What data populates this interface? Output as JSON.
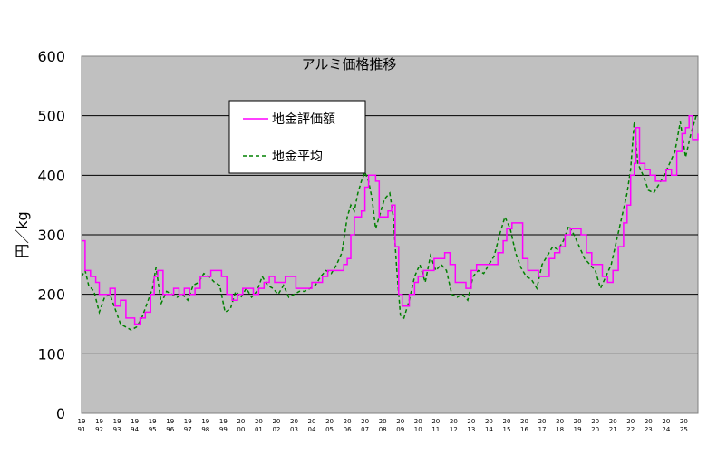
{
  "chart_data": {
    "type": "line",
    "title": "アルミ価格推移",
    "xlabel": "",
    "ylabel": "円／kg",
    "ylim": [
      0,
      600
    ],
    "yticks": [
      0,
      100,
      200,
      300,
      400,
      500,
      600
    ],
    "xlim": [
      1991,
      2025.8
    ],
    "grid": "horizontal",
    "legend_position": "top-center",
    "background": "#c0c0c0",
    "x_ticks": [
      {
        "top": "19",
        "bottom": "91"
      },
      {
        "top": "19",
        "bottom": "92"
      },
      {
        "top": "19",
        "bottom": "93"
      },
      {
        "top": "19",
        "bottom": "94"
      },
      {
        "top": "19",
        "bottom": "95"
      },
      {
        "top": "19",
        "bottom": "96"
      },
      {
        "top": "19",
        "bottom": "97"
      },
      {
        "top": "19",
        "bottom": "98"
      },
      {
        "top": "19",
        "bottom": "99"
      },
      {
        "top": "20",
        "bottom": "00"
      },
      {
        "top": "20",
        "bottom": "01"
      },
      {
        "top": "20",
        "bottom": "02"
      },
      {
        "top": "20",
        "bottom": "03"
      },
      {
        "top": "20",
        "bottom": "04"
      },
      {
        "top": "20",
        "bottom": "05"
      },
      {
        "top": "20",
        "bottom": "06"
      },
      {
        "top": "20",
        "bottom": "07"
      },
      {
        "top": "20",
        "bottom": "08"
      },
      {
        "top": "20",
        "bottom": "09"
      },
      {
        "top": "20",
        "bottom": "10"
      },
      {
        "top": "20",
        "bottom": "11"
      },
      {
        "top": "20",
        "bottom": "12"
      },
      {
        "top": "20",
        "bottom": "13"
      },
      {
        "top": "20",
        "bottom": "14"
      },
      {
        "top": "20",
        "bottom": "15"
      },
      {
        "top": "20",
        "bottom": "16"
      },
      {
        "top": "20",
        "bottom": "17"
      },
      {
        "top": "20",
        "bottom": "18"
      },
      {
        "top": "20",
        "bottom": "19"
      },
      {
        "top": "20",
        "bottom": "20"
      },
      {
        "top": "20",
        "bottom": "21"
      },
      {
        "top": "20",
        "bottom": "22"
      },
      {
        "top": "20",
        "bottom": "23"
      },
      {
        "top": "20",
        "bottom": "24"
      },
      {
        "top": "20",
        "bottom": "25"
      }
    ],
    "series": [
      {
        "name": "地金評価額",
        "color": "#ff00ff",
        "style": "solid",
        "points": [
          [
            1991.0,
            290
          ],
          [
            1991.2,
            240
          ],
          [
            1991.5,
            230
          ],
          [
            1991.8,
            220
          ],
          [
            1992.0,
            200
          ],
          [
            1992.3,
            200
          ],
          [
            1992.6,
            210
          ],
          [
            1992.9,
            180
          ],
          [
            1993.2,
            190
          ],
          [
            1993.5,
            160
          ],
          [
            1993.8,
            160
          ],
          [
            1994.0,
            150
          ],
          [
            1994.3,
            160
          ],
          [
            1994.6,
            170
          ],
          [
            1994.9,
            200
          ],
          [
            1995.1,
            230
          ],
          [
            1995.3,
            240
          ],
          [
            1995.6,
            200
          ],
          [
            1995.9,
            200
          ],
          [
            1996.2,
            210
          ],
          [
            1996.5,
            200
          ],
          [
            1996.8,
            210
          ],
          [
            1997.1,
            200
          ],
          [
            1997.4,
            210
          ],
          [
            1997.7,
            230
          ],
          [
            1998.0,
            230
          ],
          [
            1998.3,
            240
          ],
          [
            1998.6,
            240
          ],
          [
            1998.9,
            230
          ],
          [
            1999.2,
            200
          ],
          [
            1999.5,
            190
          ],
          [
            1999.8,
            200
          ],
          [
            2000.1,
            210
          ],
          [
            2000.4,
            210
          ],
          [
            2000.7,
            200
          ],
          [
            2001.0,
            210
          ],
          [
            2001.3,
            220
          ],
          [
            2001.6,
            230
          ],
          [
            2001.9,
            220
          ],
          [
            2002.2,
            220
          ],
          [
            2002.5,
            230
          ],
          [
            2002.8,
            230
          ],
          [
            2003.1,
            210
          ],
          [
            2003.4,
            210
          ],
          [
            2003.7,
            210
          ],
          [
            2004.0,
            220
          ],
          [
            2004.3,
            220
          ],
          [
            2004.6,
            230
          ],
          [
            2004.9,
            240
          ],
          [
            2005.2,
            240
          ],
          [
            2005.5,
            240
          ],
          [
            2005.8,
            250
          ],
          [
            2006.0,
            260
          ],
          [
            2006.2,
            300
          ],
          [
            2006.4,
            330
          ],
          [
            2006.6,
            330
          ],
          [
            2006.8,
            340
          ],
          [
            2007.0,
            380
          ],
          [
            2007.2,
            400
          ],
          [
            2007.4,
            400
          ],
          [
            2007.6,
            390
          ],
          [
            2007.8,
            330
          ],
          [
            2008.0,
            330
          ],
          [
            2008.3,
            340
          ],
          [
            2008.5,
            350
          ],
          [
            2008.7,
            280
          ],
          [
            2008.9,
            200
          ],
          [
            2009.1,
            180
          ],
          [
            2009.3,
            180
          ],
          [
            2009.5,
            200
          ],
          [
            2009.8,
            220
          ],
          [
            2010.0,
            230
          ],
          [
            2010.3,
            240
          ],
          [
            2010.6,
            240
          ],
          [
            2010.9,
            260
          ],
          [
            2011.2,
            260
          ],
          [
            2011.5,
            270
          ],
          [
            2011.8,
            250
          ],
          [
            2012.1,
            220
          ],
          [
            2012.4,
            220
          ],
          [
            2012.7,
            210
          ],
          [
            2013.0,
            240
          ],
          [
            2013.3,
            250
          ],
          [
            2013.6,
            250
          ],
          [
            2013.9,
            250
          ],
          [
            2014.2,
            250
          ],
          [
            2014.5,
            270
          ],
          [
            2014.8,
            290
          ],
          [
            2015.0,
            310
          ],
          [
            2015.3,
            320
          ],
          [
            2015.6,
            320
          ],
          [
            2015.9,
            260
          ],
          [
            2016.2,
            240
          ],
          [
            2016.5,
            240
          ],
          [
            2016.8,
            230
          ],
          [
            2017.1,
            230
          ],
          [
            2017.4,
            260
          ],
          [
            2017.7,
            270
          ],
          [
            2018.0,
            280
          ],
          [
            2018.3,
            300
          ],
          [
            2018.6,
            310
          ],
          [
            2018.9,
            310
          ],
          [
            2019.2,
            300
          ],
          [
            2019.5,
            270
          ],
          [
            2019.8,
            250
          ],
          [
            2020.1,
            250
          ],
          [
            2020.4,
            230
          ],
          [
            2020.7,
            220
          ],
          [
            2021.0,
            240
          ],
          [
            2021.3,
            280
          ],
          [
            2021.6,
            320
          ],
          [
            2021.8,
            350
          ],
          [
            2022.0,
            400
          ],
          [
            2022.2,
            420
          ],
          [
            2022.3,
            480
          ],
          [
            2022.4,
            480
          ],
          [
            2022.5,
            420
          ],
          [
            2022.8,
            410
          ],
          [
            2023.1,
            400
          ],
          [
            2023.4,
            390
          ],
          [
            2023.7,
            390
          ],
          [
            2024.0,
            410
          ],
          [
            2024.3,
            400
          ],
          [
            2024.6,
            440
          ],
          [
            2024.9,
            470
          ],
          [
            2025.1,
            480
          ],
          [
            2025.3,
            500
          ],
          [
            2025.5,
            460
          ],
          [
            2025.8,
            470
          ]
        ]
      },
      {
        "name": "地金平均",
        "color": "#008000",
        "style": "dashed",
        "points": [
          [
            1991.0,
            230
          ],
          [
            1991.2,
            240
          ],
          [
            1991.4,
            215
          ],
          [
            1991.7,
            205
          ],
          [
            1992.0,
            170
          ],
          [
            1992.3,
            195
          ],
          [
            1992.6,
            200
          ],
          [
            1992.9,
            175
          ],
          [
            1993.2,
            150
          ],
          [
            1993.5,
            145
          ],
          [
            1993.8,
            140
          ],
          [
            1994.1,
            145
          ],
          [
            1994.4,
            160
          ],
          [
            1994.7,
            185
          ],
          [
            1995.0,
            210
          ],
          [
            1995.2,
            245
          ],
          [
            1995.5,
            185
          ],
          [
            1995.8,
            205
          ],
          [
            1996.1,
            200
          ],
          [
            1996.4,
            195
          ],
          [
            1996.7,
            200
          ],
          [
            1997.0,
            190
          ],
          [
            1997.3,
            215
          ],
          [
            1997.6,
            220
          ],
          [
            1997.9,
            235
          ],
          [
            1998.2,
            230
          ],
          [
            1998.5,
            220
          ],
          [
            1998.8,
            215
          ],
          [
            1999.1,
            170
          ],
          [
            1999.4,
            175
          ],
          [
            1999.7,
            205
          ],
          [
            2000.0,
            195
          ],
          [
            2000.3,
            210
          ],
          [
            2000.6,
            195
          ],
          [
            2000.9,
            205
          ],
          [
            2001.2,
            230
          ],
          [
            2001.5,
            215
          ],
          [
            2001.8,
            210
          ],
          [
            2002.1,
            200
          ],
          [
            2002.4,
            215
          ],
          [
            2002.7,
            195
          ],
          [
            2003.0,
            200
          ],
          [
            2003.3,
            205
          ],
          [
            2003.6,
            205
          ],
          [
            2003.9,
            210
          ],
          [
            2004.2,
            215
          ],
          [
            2004.5,
            230
          ],
          [
            2004.8,
            240
          ],
          [
            2005.1,
            235
          ],
          [
            2005.4,
            250
          ],
          [
            2005.7,
            270
          ],
          [
            2006.0,
            330
          ],
          [
            2006.2,
            350
          ],
          [
            2006.4,
            340
          ],
          [
            2006.6,
            370
          ],
          [
            2006.8,
            390
          ],
          [
            2007.0,
            405
          ],
          [
            2007.2,
            390
          ],
          [
            2007.4,
            360
          ],
          [
            2007.6,
            310
          ],
          [
            2007.9,
            340
          ],
          [
            2008.1,
            360
          ],
          [
            2008.4,
            370
          ],
          [
            2008.6,
            330
          ],
          [
            2008.8,
            240
          ],
          [
            2009.0,
            165
          ],
          [
            2009.2,
            160
          ],
          [
            2009.5,
            190
          ],
          [
            2009.8,
            230
          ],
          [
            2010.1,
            250
          ],
          [
            2010.4,
            220
          ],
          [
            2010.7,
            265
          ],
          [
            2011.0,
            240
          ],
          [
            2011.3,
            250
          ],
          [
            2011.6,
            240
          ],
          [
            2011.9,
            200
          ],
          [
            2012.2,
            195
          ],
          [
            2012.5,
            200
          ],
          [
            2012.8,
            190
          ],
          [
            2013.1,
            230
          ],
          [
            2013.4,
            240
          ],
          [
            2013.7,
            235
          ],
          [
            2014.0,
            250
          ],
          [
            2014.3,
            265
          ],
          [
            2014.6,
            300
          ],
          [
            2014.9,
            330
          ],
          [
            2015.2,
            310
          ],
          [
            2015.5,
            270
          ],
          [
            2015.8,
            245
          ],
          [
            2016.1,
            230
          ],
          [
            2016.4,
            225
          ],
          [
            2016.7,
            210
          ],
          [
            2017.0,
            250
          ],
          [
            2017.3,
            265
          ],
          [
            2017.6,
            280
          ],
          [
            2017.9,
            275
          ],
          [
            2018.2,
            290
          ],
          [
            2018.5,
            315
          ],
          [
            2018.8,
            300
          ],
          [
            2019.1,
            280
          ],
          [
            2019.4,
            260
          ],
          [
            2019.7,
            250
          ],
          [
            2020.0,
            240
          ],
          [
            2020.3,
            210
          ],
          [
            2020.6,
            230
          ],
          [
            2020.9,
            250
          ],
          [
            2021.2,
            290
          ],
          [
            2021.5,
            330
          ],
          [
            2021.8,
            370
          ],
          [
            2022.0,
            410
          ],
          [
            2022.2,
            490
          ],
          [
            2022.4,
            420
          ],
          [
            2022.7,
            400
          ],
          [
            2023.0,
            375
          ],
          [
            2023.3,
            370
          ],
          [
            2023.6,
            385
          ],
          [
            2023.9,
            400
          ],
          [
            2024.2,
            420
          ],
          [
            2024.5,
            440
          ],
          [
            2024.8,
            490
          ],
          [
            2025.1,
            430
          ],
          [
            2025.4,
            470
          ],
          [
            2025.7,
            500
          ]
        ]
      }
    ]
  }
}
